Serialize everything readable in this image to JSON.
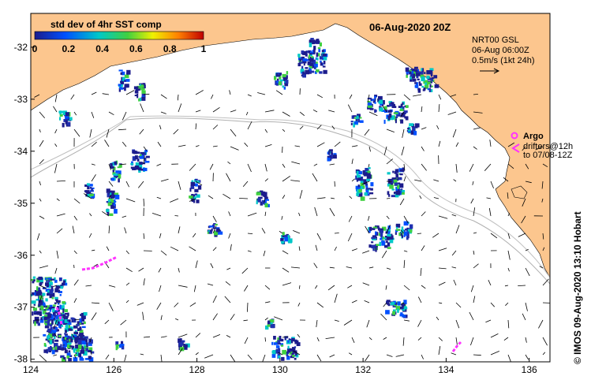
{
  "map": {
    "title": "06-Aug-2020 20Z",
    "lon_range": [
      124,
      136.5
    ],
    "lat_range": [
      -38.05,
      -31.35
    ],
    "lon_ticks": [
      "124",
      "126",
      "128",
      "130",
      "132",
      "134",
      "136"
    ],
    "lat_ticks": [
      "-32",
      "-33",
      "-34",
      "-35",
      "-36",
      "-37",
      "-38"
    ],
    "land_color": "#fcc68e",
    "ocean_color": "#ffffff",
    "colorbar": {
      "label": "std dev of 4hr SST comp",
      "ticks": [
        "0",
        "0.2",
        "0.4",
        "0.6",
        "0.8",
        "1"
      ],
      "colors": [
        "#1c1c8c",
        "#0050ff",
        "#00c8c8",
        "#40d040",
        "#f0f000",
        "#ff8000",
        "#c00000"
      ]
    },
    "current_info": {
      "line1": "NRT00 GSL",
      "line2": "06-Aug 06:00Z",
      "line3": "0.5m/s (1kt 24h)"
    },
    "argo": {
      "label": "Argo",
      "line2": "drifters@12h",
      "line3": "to 07/08-12Z",
      "color": "#ff33ff"
    },
    "credit": "© IMOS 09-Aug-2020 13:10 Hobart"
  }
}
